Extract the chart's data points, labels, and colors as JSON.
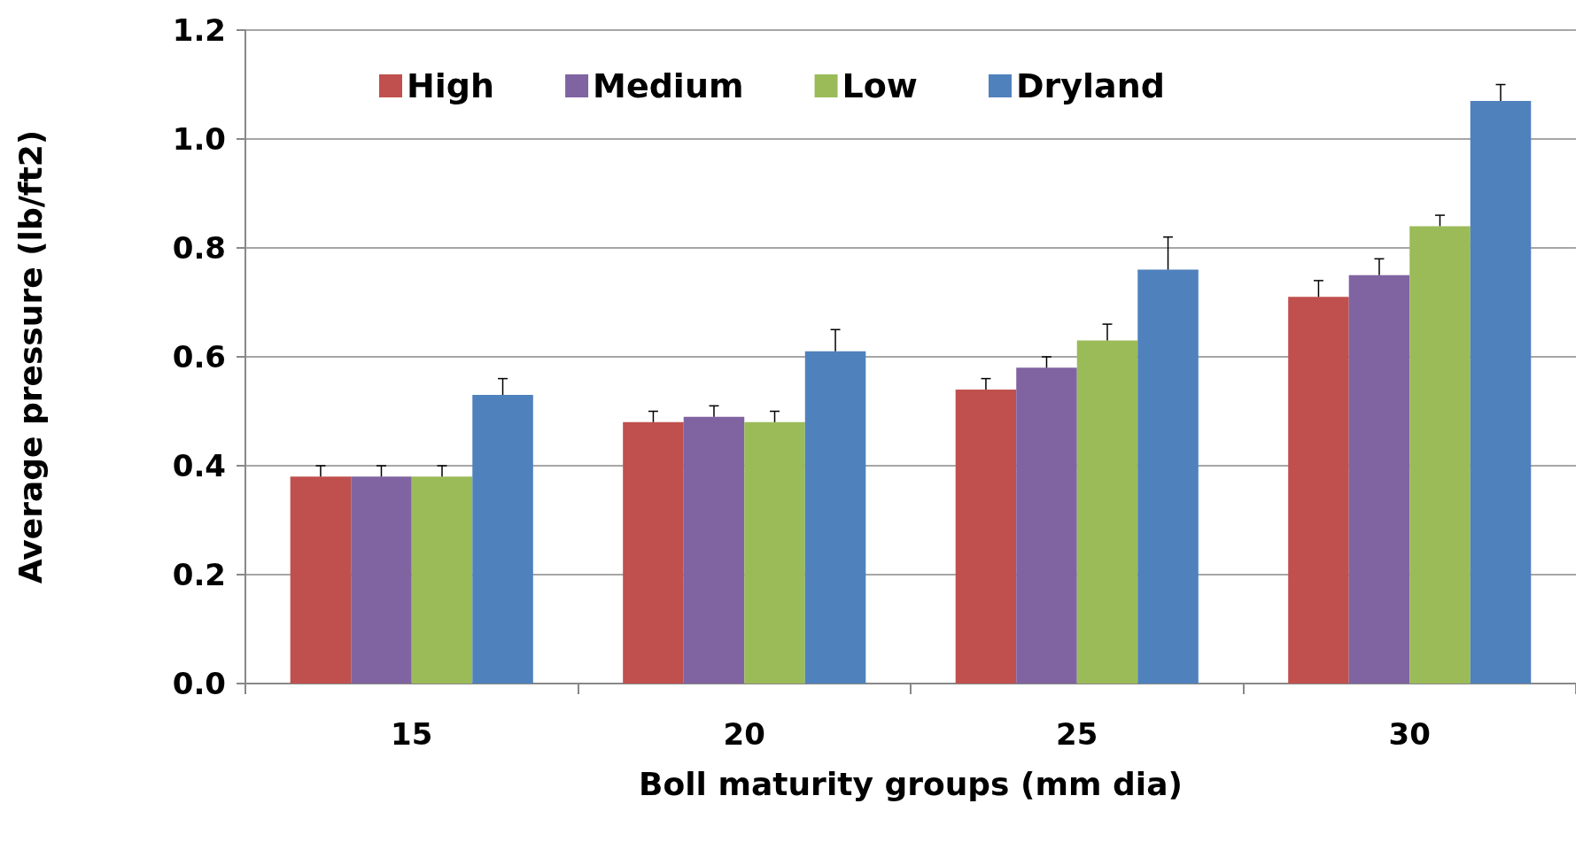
{
  "chart_data": {
    "type": "bar",
    "xlabel": "Boll maturity groups (mm dia)",
    "ylabel": "Average pressure (lb/ft2)",
    "categories": [
      "15",
      "20",
      "25",
      "30"
    ],
    "series": [
      {
        "name": "High",
        "color": "#c0504d",
        "values": [
          0.38,
          0.48,
          0.54,
          0.71
        ],
        "errors": [
          0.02,
          0.02,
          0.02,
          0.03
        ]
      },
      {
        "name": "Medium",
        "color": "#8064a2",
        "values": [
          0.38,
          0.49,
          0.58,
          0.75
        ],
        "errors": [
          0.02,
          0.02,
          0.02,
          0.03
        ]
      },
      {
        "name": "Low",
        "color": "#9bbb59",
        "values": [
          0.38,
          0.48,
          0.63,
          0.84
        ],
        "errors": [
          0.02,
          0.02,
          0.03,
          0.02
        ]
      },
      {
        "name": "Dryland",
        "color": "#4f81bd",
        "values": [
          0.53,
          0.61,
          0.76,
          1.07
        ],
        "errors": [
          0.03,
          0.04,
          0.06,
          0.03
        ]
      }
    ],
    "ylim": [
      0,
      1.2
    ],
    "yticks": [
      {
        "value": 0,
        "label": "0.0"
      },
      0.2,
      0.4,
      0.6,
      0.8,
      {
        "value": 1,
        "label": "1.0"
      },
      {
        "value": 1.2,
        "label": "1.2"
      }
    ],
    "grid": "y",
    "legend": "top"
  }
}
